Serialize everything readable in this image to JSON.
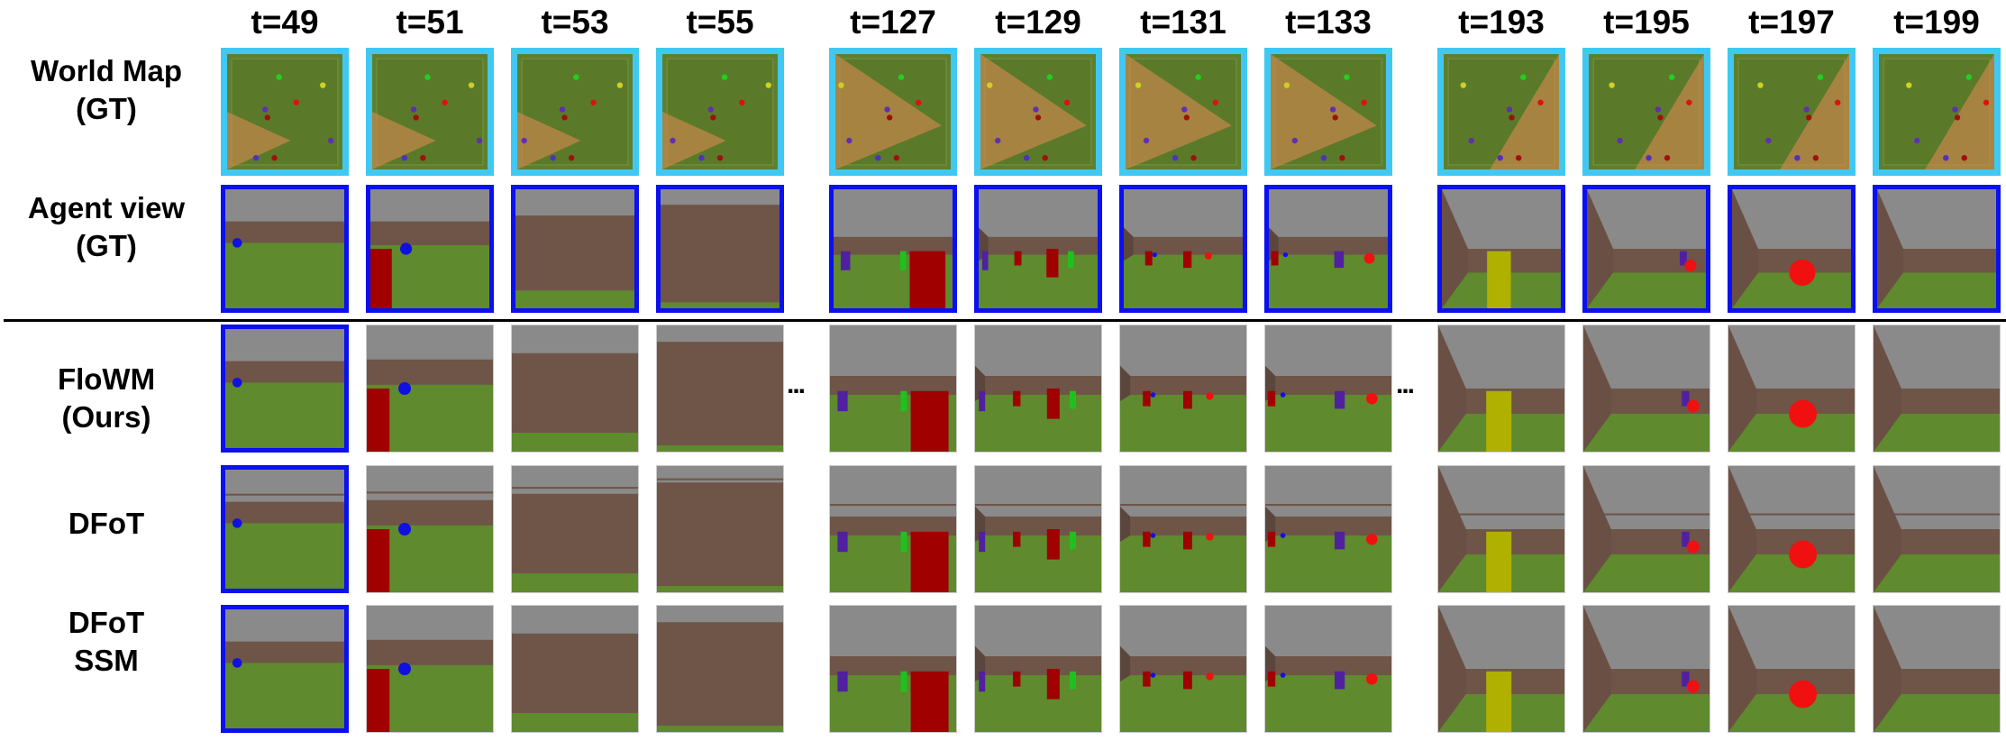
{
  "columns": [
    "t=49",
    "t=51",
    "t=53",
    "t=55",
    "t=127",
    "t=129",
    "t=131",
    "t=133",
    "t=193",
    "t=195",
    "t=197",
    "t=199"
  ],
  "rows": [
    {
      "label_line1": "World Map",
      "label_line2": "(GT)",
      "kind": "map"
    },
    {
      "label_line1": "Agent view",
      "label_line2": "(GT)",
      "kind": "gt"
    },
    {
      "label_line1": "FloWM",
      "label_line2": "(Ours)",
      "kind": "pred"
    },
    {
      "label_line1": "DFoT",
      "label_line2": "",
      "kind": "pred"
    },
    {
      "label_line1": "DFoT",
      "label_line2": "SSM",
      "kind": "pred"
    }
  ],
  "ellipsis": "...",
  "colors": {
    "map_border": "#40c8f4",
    "gt_border": "#0a10f0",
    "sky": "#8a8a8a",
    "wall": "#6e5548",
    "floor": "#5f8a2e"
  }
}
